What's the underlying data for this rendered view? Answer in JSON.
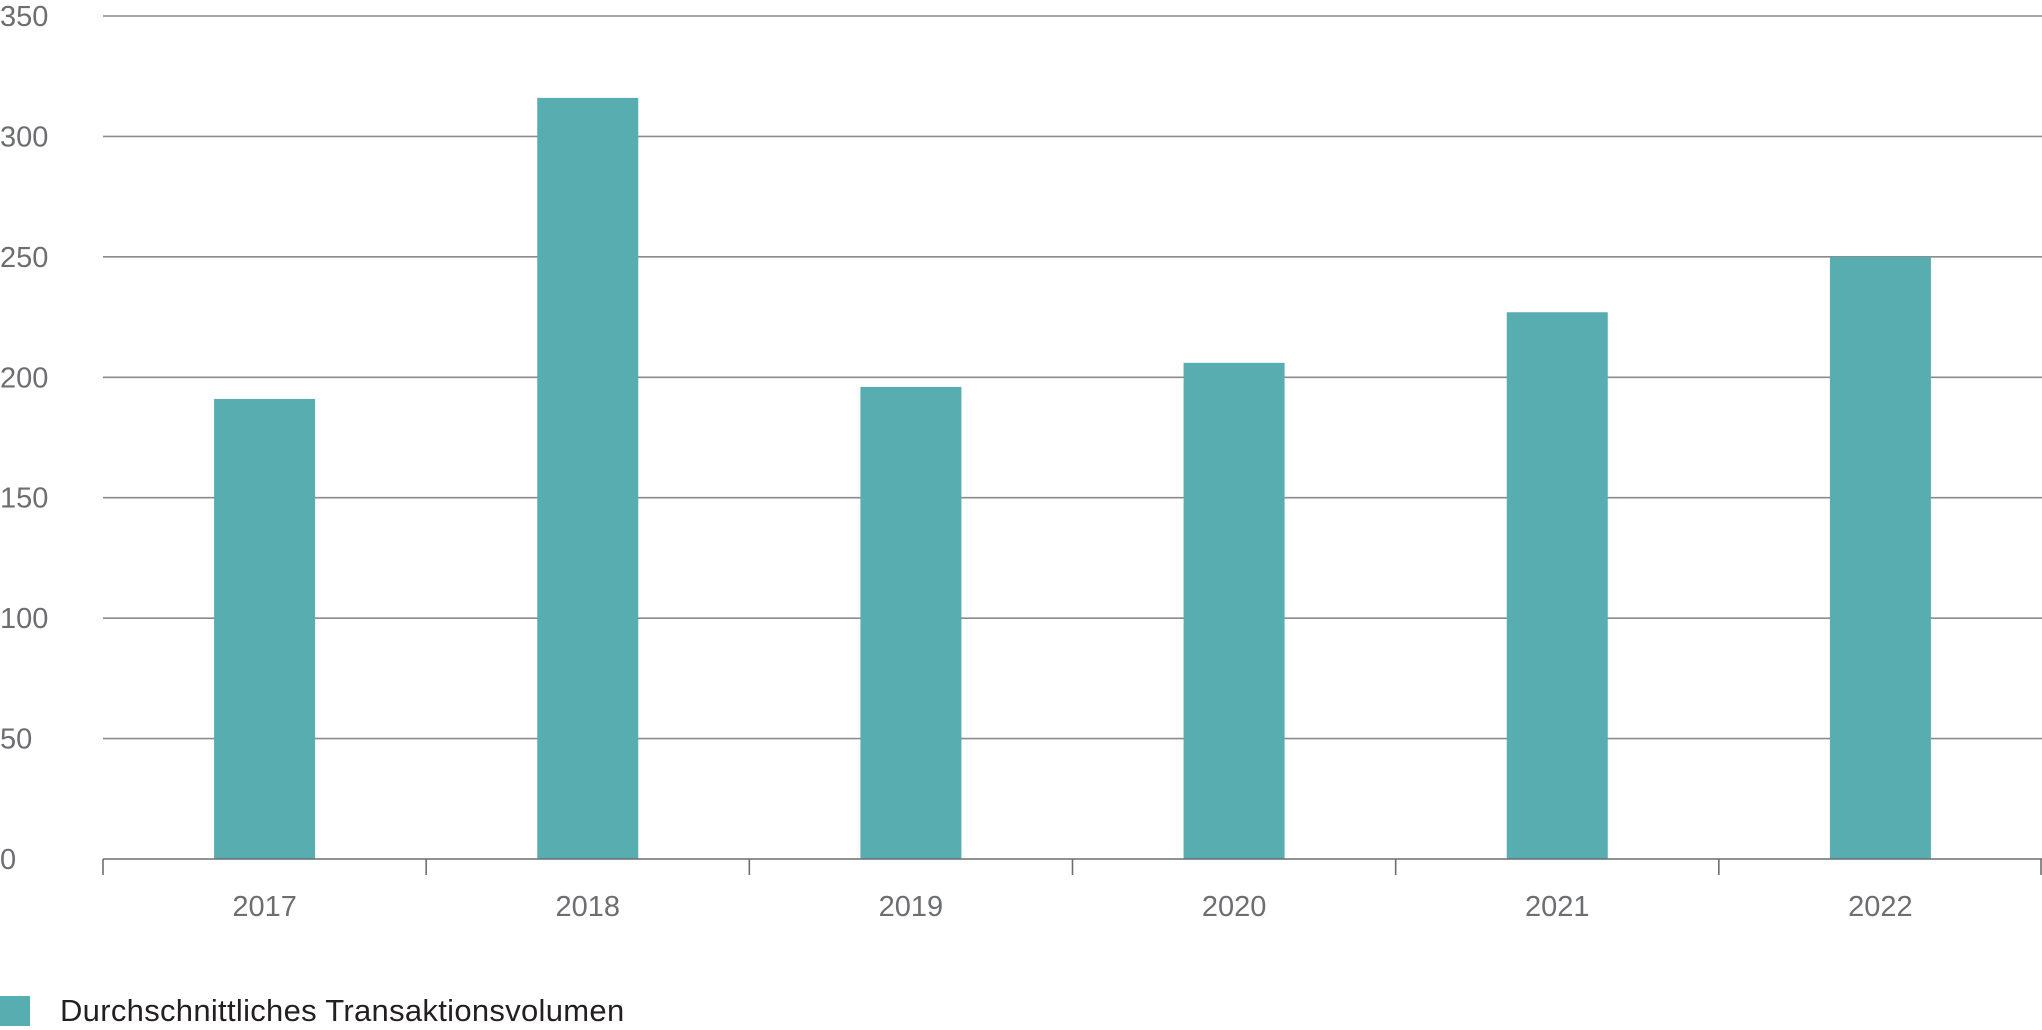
{
  "chart_data": {
    "type": "bar",
    "categories": [
      "2017",
      "2018",
      "2019",
      "2020",
      "2021",
      "2022"
    ],
    "series": [
      {
        "name": "Durchschnittliches Transaktionsvolumen",
        "values": [
          191,
          316,
          196,
          206,
          227,
          250
        ]
      }
    ],
    "title": "",
    "xlabel": "",
    "ylabel": "",
    "ylim": [
      0,
      350
    ],
    "yticks": [
      0,
      50,
      100,
      150,
      200,
      250,
      300,
      350
    ],
    "ytick_labels": [
      "0",
      "50",
      "100",
      "150",
      "200",
      "250",
      "300",
      "350"
    ],
    "grid": true,
    "legend_position": "bottom-left",
    "colors": {
      "bar": "#57adaf",
      "grid": "#8a8b8d",
      "axis": "#6d6e71",
      "tick_text": "#6d6e71"
    }
  }
}
